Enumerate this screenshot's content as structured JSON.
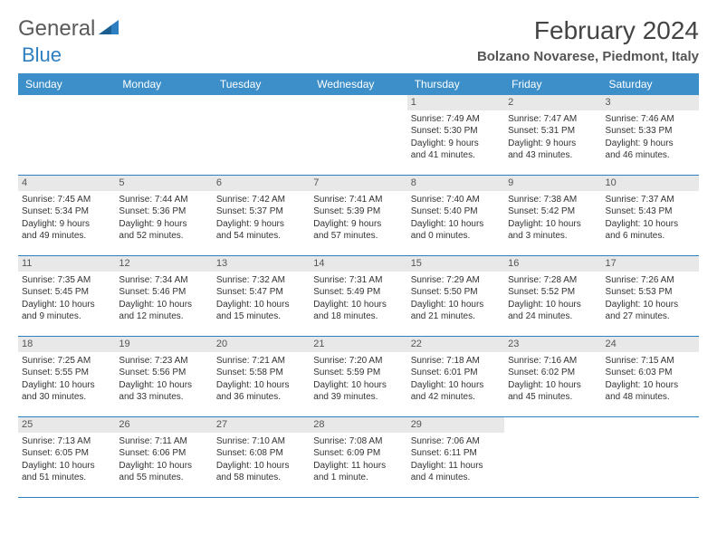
{
  "logo": {
    "word1": "General",
    "word2": "Blue"
  },
  "title": "February 2024",
  "location": "Bolzano Novarese, Piedmont, Italy",
  "colors": {
    "headerBg": "#3d8fc9",
    "rowBorder": "#2d7fc1",
    "dayBarBg": "#e8e8e8"
  },
  "dayHeaders": [
    "Sunday",
    "Monday",
    "Tuesday",
    "Wednesday",
    "Thursday",
    "Friday",
    "Saturday"
  ],
  "weeks": [
    [
      null,
      null,
      null,
      null,
      {
        "n": "1",
        "sr": "Sunrise: 7:49 AM",
        "ss": "Sunset: 5:30 PM",
        "d1": "Daylight: 9 hours",
        "d2": "and 41 minutes."
      },
      {
        "n": "2",
        "sr": "Sunrise: 7:47 AM",
        "ss": "Sunset: 5:31 PM",
        "d1": "Daylight: 9 hours",
        "d2": "and 43 minutes."
      },
      {
        "n": "3",
        "sr": "Sunrise: 7:46 AM",
        "ss": "Sunset: 5:33 PM",
        "d1": "Daylight: 9 hours",
        "d2": "and 46 minutes."
      }
    ],
    [
      {
        "n": "4",
        "sr": "Sunrise: 7:45 AM",
        "ss": "Sunset: 5:34 PM",
        "d1": "Daylight: 9 hours",
        "d2": "and 49 minutes."
      },
      {
        "n": "5",
        "sr": "Sunrise: 7:44 AM",
        "ss": "Sunset: 5:36 PM",
        "d1": "Daylight: 9 hours",
        "d2": "and 52 minutes."
      },
      {
        "n": "6",
        "sr": "Sunrise: 7:42 AM",
        "ss": "Sunset: 5:37 PM",
        "d1": "Daylight: 9 hours",
        "d2": "and 54 minutes."
      },
      {
        "n": "7",
        "sr": "Sunrise: 7:41 AM",
        "ss": "Sunset: 5:39 PM",
        "d1": "Daylight: 9 hours",
        "d2": "and 57 minutes."
      },
      {
        "n": "8",
        "sr": "Sunrise: 7:40 AM",
        "ss": "Sunset: 5:40 PM",
        "d1": "Daylight: 10 hours",
        "d2": "and 0 minutes."
      },
      {
        "n": "9",
        "sr": "Sunrise: 7:38 AM",
        "ss": "Sunset: 5:42 PM",
        "d1": "Daylight: 10 hours",
        "d2": "and 3 minutes."
      },
      {
        "n": "10",
        "sr": "Sunrise: 7:37 AM",
        "ss": "Sunset: 5:43 PM",
        "d1": "Daylight: 10 hours",
        "d2": "and 6 minutes."
      }
    ],
    [
      {
        "n": "11",
        "sr": "Sunrise: 7:35 AM",
        "ss": "Sunset: 5:45 PM",
        "d1": "Daylight: 10 hours",
        "d2": "and 9 minutes."
      },
      {
        "n": "12",
        "sr": "Sunrise: 7:34 AM",
        "ss": "Sunset: 5:46 PM",
        "d1": "Daylight: 10 hours",
        "d2": "and 12 minutes."
      },
      {
        "n": "13",
        "sr": "Sunrise: 7:32 AM",
        "ss": "Sunset: 5:47 PM",
        "d1": "Daylight: 10 hours",
        "d2": "and 15 minutes."
      },
      {
        "n": "14",
        "sr": "Sunrise: 7:31 AM",
        "ss": "Sunset: 5:49 PM",
        "d1": "Daylight: 10 hours",
        "d2": "and 18 minutes."
      },
      {
        "n": "15",
        "sr": "Sunrise: 7:29 AM",
        "ss": "Sunset: 5:50 PM",
        "d1": "Daylight: 10 hours",
        "d2": "and 21 minutes."
      },
      {
        "n": "16",
        "sr": "Sunrise: 7:28 AM",
        "ss": "Sunset: 5:52 PM",
        "d1": "Daylight: 10 hours",
        "d2": "and 24 minutes."
      },
      {
        "n": "17",
        "sr": "Sunrise: 7:26 AM",
        "ss": "Sunset: 5:53 PM",
        "d1": "Daylight: 10 hours",
        "d2": "and 27 minutes."
      }
    ],
    [
      {
        "n": "18",
        "sr": "Sunrise: 7:25 AM",
        "ss": "Sunset: 5:55 PM",
        "d1": "Daylight: 10 hours",
        "d2": "and 30 minutes."
      },
      {
        "n": "19",
        "sr": "Sunrise: 7:23 AM",
        "ss": "Sunset: 5:56 PM",
        "d1": "Daylight: 10 hours",
        "d2": "and 33 minutes."
      },
      {
        "n": "20",
        "sr": "Sunrise: 7:21 AM",
        "ss": "Sunset: 5:58 PM",
        "d1": "Daylight: 10 hours",
        "d2": "and 36 minutes."
      },
      {
        "n": "21",
        "sr": "Sunrise: 7:20 AM",
        "ss": "Sunset: 5:59 PM",
        "d1": "Daylight: 10 hours",
        "d2": "and 39 minutes."
      },
      {
        "n": "22",
        "sr": "Sunrise: 7:18 AM",
        "ss": "Sunset: 6:01 PM",
        "d1": "Daylight: 10 hours",
        "d2": "and 42 minutes."
      },
      {
        "n": "23",
        "sr": "Sunrise: 7:16 AM",
        "ss": "Sunset: 6:02 PM",
        "d1": "Daylight: 10 hours",
        "d2": "and 45 minutes."
      },
      {
        "n": "24",
        "sr": "Sunrise: 7:15 AM",
        "ss": "Sunset: 6:03 PM",
        "d1": "Daylight: 10 hours",
        "d2": "and 48 minutes."
      }
    ],
    [
      {
        "n": "25",
        "sr": "Sunrise: 7:13 AM",
        "ss": "Sunset: 6:05 PM",
        "d1": "Daylight: 10 hours",
        "d2": "and 51 minutes."
      },
      {
        "n": "26",
        "sr": "Sunrise: 7:11 AM",
        "ss": "Sunset: 6:06 PM",
        "d1": "Daylight: 10 hours",
        "d2": "and 55 minutes."
      },
      {
        "n": "27",
        "sr": "Sunrise: 7:10 AM",
        "ss": "Sunset: 6:08 PM",
        "d1": "Daylight: 10 hours",
        "d2": "and 58 minutes."
      },
      {
        "n": "28",
        "sr": "Sunrise: 7:08 AM",
        "ss": "Sunset: 6:09 PM",
        "d1": "Daylight: 11 hours",
        "d2": "and 1 minute."
      },
      {
        "n": "29",
        "sr": "Sunrise: 7:06 AM",
        "ss": "Sunset: 6:11 PM",
        "d1": "Daylight: 11 hours",
        "d2": "and 4 minutes."
      },
      null,
      null
    ]
  ]
}
